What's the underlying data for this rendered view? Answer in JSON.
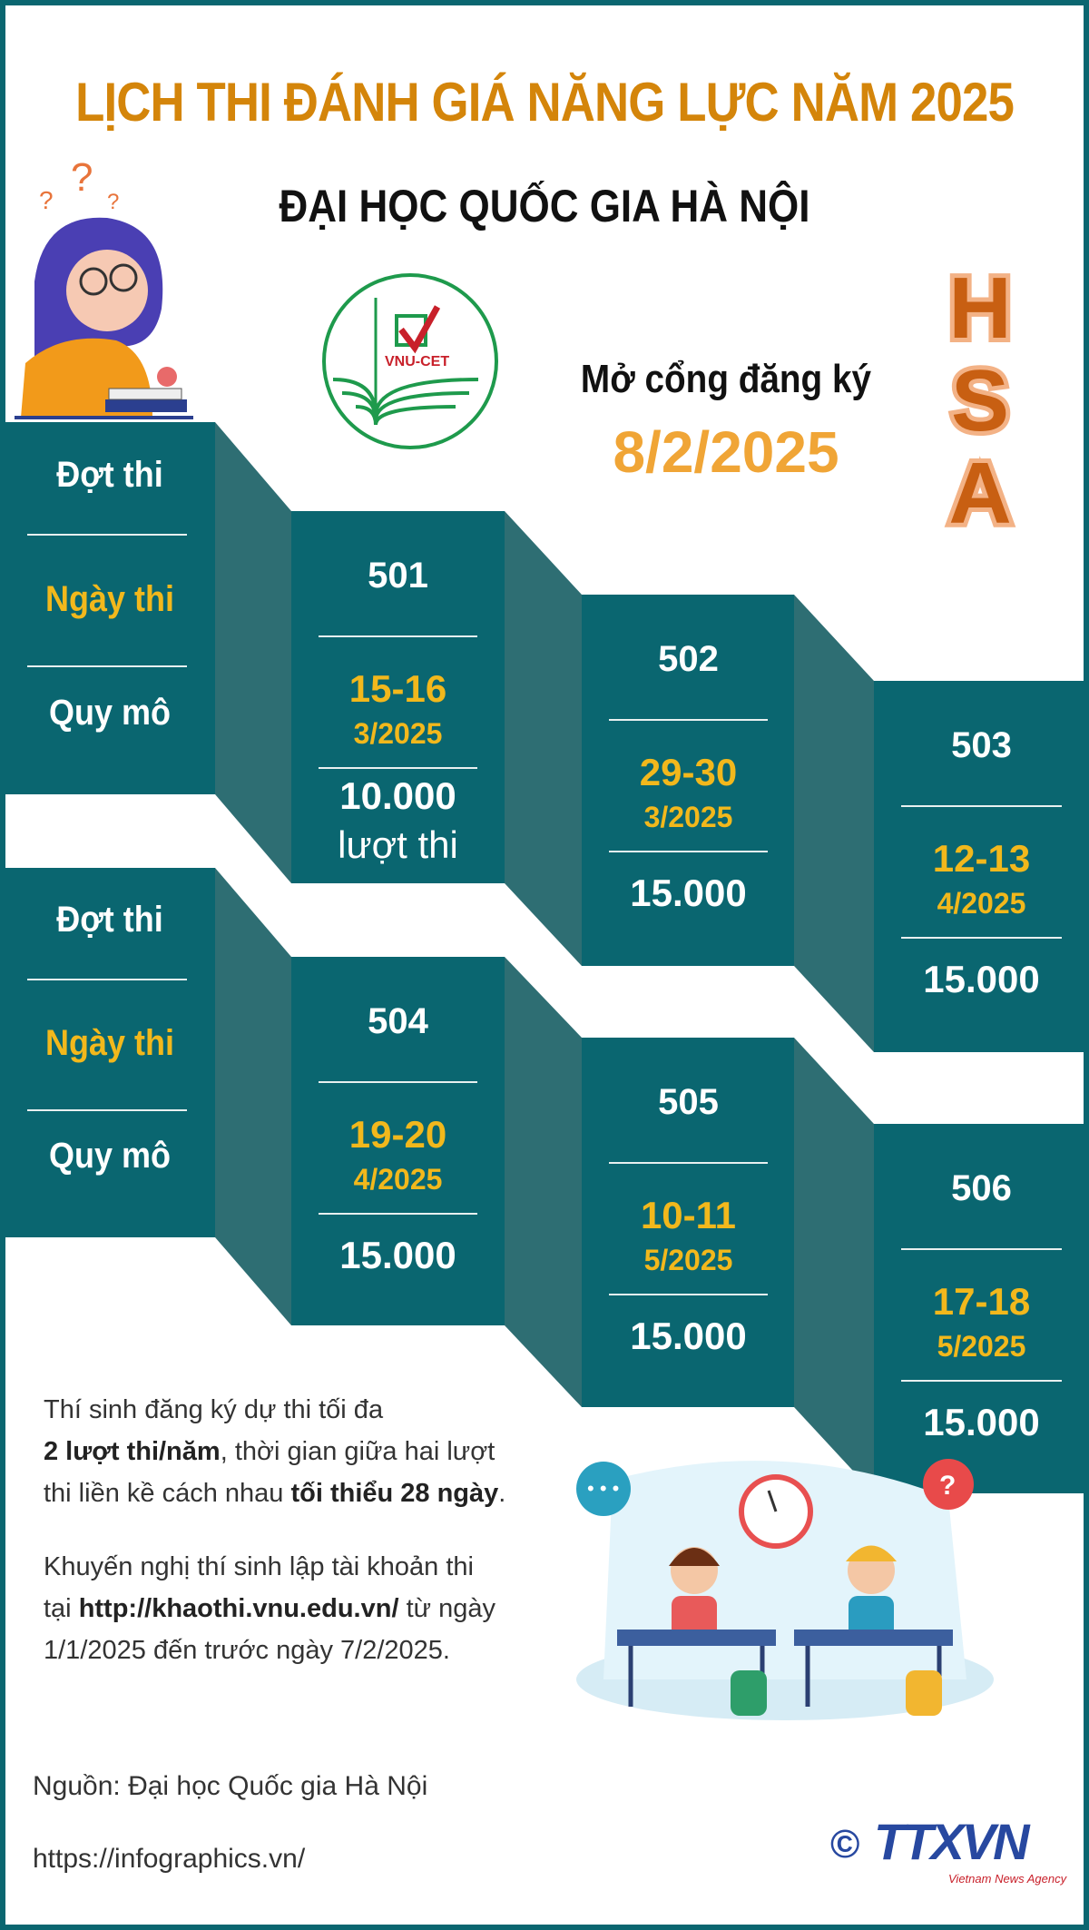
{
  "header": {
    "title": "LỊCH THI ĐÁNH GIÁ NĂNG LỰC NĂM 2025",
    "subtitle": "ĐẠI HỌC QUỐC GIA HÀ NỘI"
  },
  "logo": {
    "text": "VNU-CET"
  },
  "registration": {
    "label": "Mở cổng đăng ký",
    "date": "8/2/2025"
  },
  "badge": {
    "letters": [
      "H",
      "S",
      "A"
    ]
  },
  "labels": {
    "round": "Đợt thi",
    "date": "Ngày thi",
    "scale": "Quy mô"
  },
  "rounds": [
    {
      "id": "501",
      "date": "15-16",
      "month": "3/2025",
      "scale": "10.000",
      "unit": "lượt thi"
    },
    {
      "id": "502",
      "date": "29-30",
      "month": "3/2025",
      "scale": "15.000"
    },
    {
      "id": "503",
      "date": "12-13",
      "month": "4/2025",
      "scale": "15.000"
    },
    {
      "id": "504",
      "date": "19-20",
      "month": "4/2025",
      "scale": "15.000"
    },
    {
      "id": "505",
      "date": "10-11",
      "month": "5/2025",
      "scale": "15.000"
    },
    {
      "id": "506",
      "date": "17-18",
      "month": "5/2025",
      "scale": "15.000"
    }
  ],
  "notes": {
    "p1_a": "Thí sinh đăng ký dự thi tối đa",
    "p1_b": "2 lượt thi/năm",
    "p1_c": ", thời gian giữa hai lượt",
    "p1_d": "thi liền kề cách nhau ",
    "p1_e": "tối thiểu 28 ngày",
    "p1_f": ".",
    "p2_a": "Khuyến nghị thí sinh lập tài khoản thi",
    "p2_b": "tại ",
    "p2_c": "http://khaothi.vnu.edu.vn/",
    "p2_d": " từ ngày",
    "p2_e": "1/1/2025 đến trước ngày 7/2/2025."
  },
  "footer": {
    "source": "Nguồn: Đại học Quốc gia Hà Nội",
    "url": "https://infographics.vn/",
    "copyright": "©",
    "agency": "TTXVN",
    "agency_sub": "Vietnam News Agency"
  },
  "colors": {
    "teal": "#0a6670",
    "connector": "#2e6e73",
    "orange": "#d4850a",
    "yellow": "#f2b81c"
  }
}
